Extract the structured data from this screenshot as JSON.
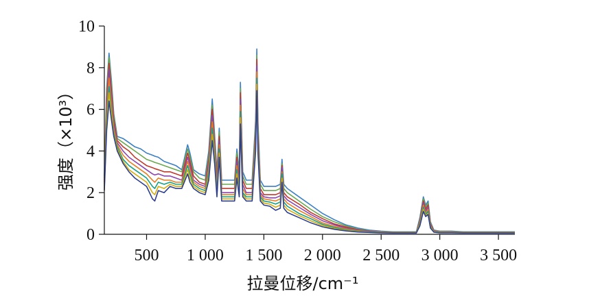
{
  "chart_data": {
    "type": "line",
    "title": "",
    "xlabel": "拉曼位移/cm⁻¹",
    "ylabel": "强度（×10³）",
    "xlim": [
      140,
      3640
    ],
    "ylim": [
      0,
      10
    ],
    "x_ticks": [
      500,
      1000,
      1500,
      2000,
      2500,
      3000,
      3500
    ],
    "x_tick_labels": [
      "500",
      "1 000",
      "1 500",
      "2 000",
      "2 500",
      "3 000",
      "3 500"
    ],
    "y_ticks": [
      0,
      2,
      4,
      6,
      8,
      10
    ],
    "y_tick_labels": [
      "0",
      "2",
      "4",
      "6",
      "8",
      "10"
    ],
    "grid": false,
    "legend": "none",
    "series_count_shown": 8,
    "x": [
      140,
      160,
      180,
      200,
      220,
      250,
      300,
      350,
      400,
      450,
      500,
      550,
      570,
      600,
      650,
      700,
      750,
      800,
      850,
      870,
      900,
      950,
      1000,
      1030,
      1060,
      1080,
      1100,
      1120,
      1140,
      1200,
      1250,
      1270,
      1290,
      1300,
      1320,
      1350,
      1400,
      1430,
      1440,
      1450,
      1470,
      1500,
      1550,
      1600,
      1640,
      1655,
      1670,
      1700,
      1800,
      1900,
      2000,
      2100,
      2200,
      2300,
      2400,
      2500,
      2600,
      2700,
      2800,
      2830,
      2860,
      2880,
      2900,
      2920,
      2950,
      3000,
      3100,
      3200,
      3300,
      3400,
      3500,
      3640
    ],
    "series": [
      {
        "values": [
          2.8,
          7.0,
          8.7,
          7.4,
          5.8,
          4.7,
          4.6,
          4.4,
          4.2,
          4.1,
          3.9,
          3.8,
          3.75,
          3.7,
          3.5,
          3.4,
          3.3,
          3.1,
          4.3,
          3.9,
          3.1,
          2.9,
          2.8,
          4.0,
          6.5,
          4.8,
          3.0,
          5.1,
          2.6,
          2.6,
          2.6,
          4.1,
          3.0,
          7.3,
          3.0,
          2.6,
          2.6,
          5.5,
          8.9,
          5.4,
          2.6,
          2.3,
          2.3,
          2.3,
          2.4,
          3.6,
          2.4,
          2.2,
          1.8,
          1.4,
          1.0,
          0.7,
          0.45,
          0.3,
          0.2,
          0.15,
          0.12,
          0.12,
          0.12,
          0.8,
          1.8,
          1.4,
          1.6,
          0.6,
          0.2,
          0.15,
          0.15,
          0.12,
          0.12,
          0.12,
          0.12,
          0.12
        ],
        "color": "#3b7fc4"
      },
      {
        "values": [
          2.7,
          6.8,
          8.5,
          7.2,
          5.7,
          4.6,
          4.4,
          4.2,
          4.0,
          3.8,
          3.6,
          3.5,
          3.45,
          3.4,
          3.3,
          3.2,
          3.1,
          3.0,
          4.1,
          3.7,
          3.0,
          2.7,
          2.6,
          3.8,
          6.2,
          4.6,
          2.8,
          4.9,
          2.4,
          2.4,
          2.4,
          3.9,
          2.8,
          7.0,
          2.8,
          2.4,
          2.4,
          5.2,
          8.6,
          5.1,
          2.4,
          2.1,
          2.1,
          2.1,
          2.2,
          3.4,
          2.2,
          2.0,
          1.6,
          1.2,
          0.85,
          0.6,
          0.4,
          0.25,
          0.17,
          0.13,
          0.11,
          0.11,
          0.11,
          0.7,
          1.7,
          1.3,
          1.5,
          0.55,
          0.18,
          0.14,
          0.13,
          0.11,
          0.11,
          0.11,
          0.11,
          0.11
        ],
        "color": "#6aa84f"
      },
      {
        "values": [
          2.6,
          6.5,
          8.2,
          6.9,
          5.5,
          4.5,
          4.2,
          4.0,
          3.7,
          3.5,
          3.3,
          3.2,
          3.15,
          3.1,
          3.0,
          3.0,
          2.9,
          2.8,
          3.9,
          3.5,
          2.8,
          2.5,
          2.4,
          3.6,
          6.0,
          4.4,
          2.6,
          4.7,
          2.2,
          2.2,
          2.2,
          3.7,
          2.6,
          6.8,
          2.6,
          2.2,
          2.2,
          5.0,
          8.4,
          4.9,
          2.2,
          1.9,
          1.9,
          1.9,
          2.0,
          3.3,
          2.0,
          1.8,
          1.45,
          1.05,
          0.75,
          0.5,
          0.35,
          0.22,
          0.15,
          0.12,
          0.1,
          0.1,
          0.1,
          0.65,
          1.6,
          1.2,
          1.4,
          0.5,
          0.16,
          0.12,
          0.12,
          0.1,
          0.1,
          0.1,
          0.1,
          0.1
        ],
        "color": "#c0392b"
      },
      {
        "values": [
          2.5,
          6.2,
          7.9,
          6.6,
          5.3,
          4.4,
          4.0,
          3.7,
          3.5,
          3.3,
          3.1,
          2.9,
          2.85,
          2.9,
          2.8,
          2.8,
          2.7,
          2.6,
          3.7,
          3.3,
          2.6,
          2.4,
          2.3,
          3.4,
          5.7,
          4.2,
          2.4,
          4.5,
          2.0,
          2.0,
          2.0,
          3.5,
          2.4,
          6.5,
          2.4,
          2.0,
          2.0,
          4.8,
          8.1,
          4.7,
          2.0,
          1.8,
          1.75,
          1.75,
          1.85,
          3.2,
          1.85,
          1.65,
          1.3,
          0.95,
          0.65,
          0.45,
          0.3,
          0.2,
          0.14,
          0.11,
          0.1,
          0.1,
          0.1,
          0.6,
          1.5,
          1.1,
          1.3,
          0.45,
          0.15,
          0.11,
          0.11,
          0.1,
          0.1,
          0.1,
          0.1,
          0.1
        ],
        "color": "#8e44ad"
      },
      {
        "values": [
          2.4,
          5.9,
          7.5,
          6.3,
          5.1,
          4.3,
          3.8,
          3.5,
          3.3,
          3.1,
          2.9,
          2.6,
          2.5,
          2.7,
          2.6,
          2.6,
          2.5,
          2.5,
          3.5,
          3.1,
          2.5,
          2.3,
          2.2,
          3.2,
          5.4,
          4.0,
          2.2,
          4.3,
          1.9,
          1.9,
          1.9,
          3.3,
          2.2,
          6.2,
          2.2,
          1.9,
          1.9,
          4.6,
          7.8,
          4.5,
          1.9,
          1.7,
          1.65,
          1.6,
          1.7,
          3.0,
          1.7,
          1.5,
          1.15,
          0.85,
          0.55,
          0.38,
          0.26,
          0.17,
          0.12,
          0.1,
          0.09,
          0.09,
          0.09,
          0.55,
          1.4,
          1.0,
          1.2,
          0.4,
          0.13,
          0.1,
          0.1,
          0.09,
          0.09,
          0.09,
          0.09,
          0.09
        ],
        "color": "#e67e22"
      },
      {
        "values": [
          2.3,
          5.6,
          7.1,
          6.0,
          4.9,
          4.2,
          3.6,
          3.3,
          3.1,
          2.9,
          2.7,
          2.3,
          2.2,
          2.5,
          2.4,
          2.5,
          2.4,
          2.4,
          3.3,
          2.9,
          2.4,
          2.2,
          2.1,
          3.0,
          5.1,
          3.8,
          2.0,
          4.1,
          1.8,
          1.8,
          1.8,
          3.1,
          2.0,
          5.9,
          2.0,
          1.8,
          1.8,
          4.4,
          7.5,
          4.3,
          1.8,
          1.6,
          1.55,
          1.45,
          1.55,
          2.9,
          1.55,
          1.35,
          1.0,
          0.75,
          0.48,
          0.33,
          0.22,
          0.15,
          0.11,
          0.09,
          0.08,
          0.08,
          0.08,
          0.5,
          1.3,
          0.95,
          1.1,
          0.36,
          0.12,
          0.09,
          0.09,
          0.08,
          0.08,
          0.08,
          0.08,
          0.08
        ],
        "color": "#16a085"
      },
      {
        "values": [
          2.2,
          5.3,
          6.8,
          5.8,
          4.8,
          4.1,
          3.5,
          3.1,
          2.9,
          2.7,
          2.5,
          2.0,
          1.9,
          2.3,
          2.2,
          2.4,
          2.3,
          2.3,
          3.1,
          2.7,
          2.3,
          2.1,
          2.0,
          2.8,
          4.8,
          3.6,
          1.9,
          3.9,
          1.7,
          1.7,
          1.7,
          2.9,
          1.9,
          5.6,
          1.9,
          1.7,
          1.7,
          4.2,
          7.2,
          4.1,
          1.7,
          1.5,
          1.45,
          1.3,
          1.4,
          2.7,
          1.4,
          1.2,
          0.9,
          0.65,
          0.42,
          0.28,
          0.19,
          0.13,
          0.1,
          0.08,
          0.07,
          0.07,
          0.07,
          0.45,
          1.2,
          0.9,
          1.0,
          0.33,
          0.11,
          0.08,
          0.08,
          0.07,
          0.07,
          0.07,
          0.07,
          0.07
        ],
        "color": "#d4ac0d"
      },
      {
        "values": [
          2.1,
          5.0,
          6.4,
          5.5,
          4.7,
          4.0,
          3.4,
          3.0,
          2.7,
          2.5,
          2.3,
          1.7,
          1.6,
          2.1,
          2.0,
          2.3,
          2.2,
          2.2,
          2.9,
          2.5,
          2.2,
          2.0,
          1.9,
          2.6,
          4.5,
          3.4,
          1.8,
          3.7,
          1.6,
          1.6,
          1.6,
          2.7,
          1.8,
          5.3,
          1.8,
          1.6,
          1.6,
          4.0,
          6.9,
          3.9,
          1.6,
          1.4,
          1.35,
          1.15,
          1.25,
          2.5,
          1.25,
          1.05,
          0.8,
          0.55,
          0.36,
          0.24,
          0.16,
          0.11,
          0.09,
          0.07,
          0.06,
          0.06,
          0.06,
          0.4,
          1.1,
          0.85,
          0.95,
          0.3,
          0.1,
          0.07,
          0.07,
          0.06,
          0.06,
          0.06,
          0.06,
          0.06
        ],
        "color": "#2c3e8f"
      }
    ]
  }
}
